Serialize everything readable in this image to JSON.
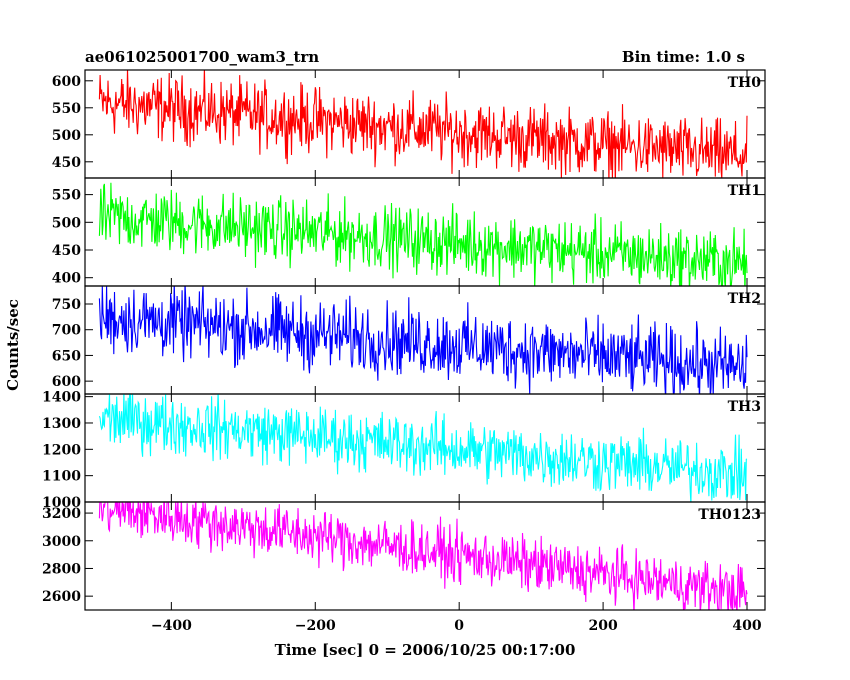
{
  "header": {
    "title": "ae061025001700_wam3_trn",
    "bin_time": "Bin time: 1.0 s"
  },
  "chart_data": {
    "type": "line",
    "title": "ae061025001700_wam3_trn",
    "xlabel": "Time [sec] 0 = 2006/10/25 00:17:00",
    "ylabel": "Counts/sec",
    "xlim": [
      -520,
      425
    ],
    "x_ticks": [
      -400,
      -200,
      0,
      200,
      400
    ],
    "x_tick_labels": [
      "−400",
      "−200",
      "0",
      "200",
      "400"
    ],
    "x_range": [
      -500,
      400
    ],
    "grid": false,
    "panels": [
      {
        "name": "TH0",
        "color": "#ff0000",
        "ylim": [
          420,
          620
        ],
        "y_ticks": [
          450,
          500,
          550,
          600
        ],
        "start_mean": 560,
        "end_mean": 460,
        "noise_amplitude": 40,
        "y_range_shown": [
          420,
          620
        ]
      },
      {
        "name": "TH1",
        "color": "#00ff00",
        "ylim": [
          385,
          580
        ],
        "y_ticks": [
          400,
          450,
          500,
          550
        ],
        "start_mean": 510,
        "end_mean": 425,
        "noise_amplitude": 38,
        "y_range_shown": [
          385,
          580
        ]
      },
      {
        "name": "TH2",
        "color": "#0000ff",
        "ylim": [
          575,
          785
        ],
        "y_ticks": [
          600,
          650,
          700,
          750
        ],
        "start_mean": 725,
        "end_mean": 625,
        "noise_amplitude": 45,
        "y_range_shown": [
          575,
          785
        ]
      },
      {
        "name": "TH3",
        "color": "#00ffff",
        "ylim": [
          1000,
          1410
        ],
        "y_ticks": [
          1000,
          1100,
          1200,
          1300,
          1400
        ],
        "start_mean": 1320,
        "end_mean": 1105,
        "noise_amplitude": 75,
        "y_range_shown": [
          1000,
          1410
        ]
      },
      {
        "name": "TH0123",
        "color": "#ff00ff",
        "ylim": [
          2500,
          3280
        ],
        "y_ticks": [
          2600,
          2800,
          3000,
          3200
        ],
        "start_mean": 3240,
        "end_mean": 2620,
        "noise_amplitude": 130,
        "y_range_shown": [
          2500,
          3280
        ]
      }
    ]
  }
}
